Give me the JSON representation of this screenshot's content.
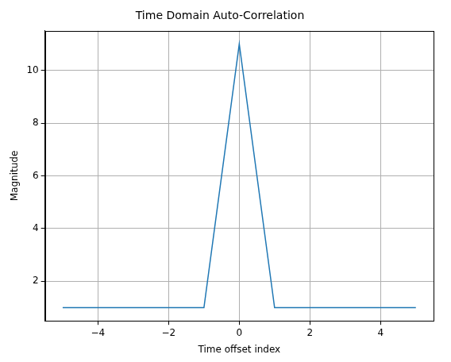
{
  "chart_data": {
    "type": "line",
    "title": "Time Domain Auto-Correlation",
    "x_label": "Time offset index",
    "y_label": "Magnitude",
    "x": [
      -5,
      -4,
      -3,
      -2,
      -1,
      0,
      1,
      2,
      3,
      4,
      5
    ],
    "values": [
      1,
      1,
      1,
      1,
      1,
      11,
      1,
      1,
      1,
      1,
      1
    ],
    "color": "#1f77b4",
    "xlim": [
      -5.5,
      5.5
    ],
    "xticks": [
      {
        "value": -4,
        "label": "−4"
      },
      {
        "value": -2,
        "label": "−2"
      },
      0,
      2,
      4
    ],
    "ylim": [
      0.5,
      11.5
    ],
    "yticks": [
      2,
      4,
      6,
      8,
      10
    ],
    "grid": true
  }
}
